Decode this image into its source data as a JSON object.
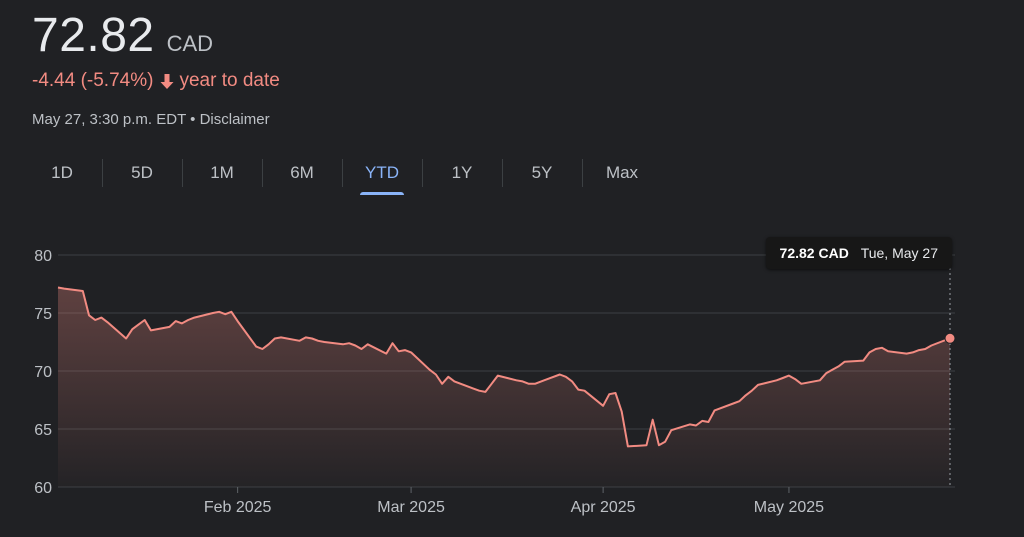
{
  "quote": {
    "price": "72.82",
    "currency": "CAD",
    "change": "-4.44 (-5.74%)",
    "change_period": "year to date",
    "timestamp": "May 27, 3:30 p.m. EDT",
    "separator": "•",
    "disclaimer": "Disclaimer",
    "negative_color": "#f28b82"
  },
  "tabs": [
    {
      "label": "1D",
      "active": false
    },
    {
      "label": "5D",
      "active": false
    },
    {
      "label": "1M",
      "active": false
    },
    {
      "label": "6M",
      "active": false
    },
    {
      "label": "YTD",
      "active": true
    },
    {
      "label": "1Y",
      "active": false
    },
    {
      "label": "5Y",
      "active": false
    },
    {
      "label": "Max",
      "active": false
    }
  ],
  "tooltip": {
    "price": "72.82 CAD",
    "date": "Tue, May 27"
  },
  "chart_data": {
    "type": "area",
    "ylim": [
      60,
      80
    ],
    "yticks": [
      80,
      75,
      70,
      65,
      60
    ],
    "x_tick_labels": [
      "Feb 2025",
      "Mar 2025",
      "Apr 2025",
      "May 2025"
    ],
    "x_tick_days": [
      31,
      59,
      90,
      120
    ],
    "xlim_days": [
      2,
      146
    ],
    "line_color": "#f28b82",
    "grid": true,
    "series": [
      {
        "x_days": [
          2,
          3,
          6,
          7,
          8,
          9,
          10,
          13,
          14,
          15,
          16,
          17,
          20,
          21,
          22,
          23,
          24,
          27,
          28,
          29,
          30,
          31,
          34,
          35,
          36,
          37,
          38,
          41,
          42,
          43,
          44,
          45,
          48,
          49,
          50,
          51,
          52,
          55,
          56,
          57,
          58,
          59,
          62,
          63,
          64,
          65,
          66,
          69,
          70,
          71,
          72,
          73,
          76,
          77,
          78,
          79,
          80,
          83,
          84,
          85,
          86,
          87,
          90,
          91,
          92,
          93,
          94,
          97,
          98,
          99,
          100,
          101,
          104,
          105,
          106,
          107,
          108,
          111,
          112,
          113,
          114,
          115,
          118,
          119,
          120,
          121,
          122,
          125,
          126,
          127,
          128,
          129,
          132,
          133,
          134,
          135,
          136,
          139,
          140,
          141,
          142,
          143,
          146
        ],
        "values": [
          77.2,
          77.1,
          76.9,
          74.8,
          74.4,
          74.6,
          74.2,
          72.8,
          73.6,
          74.0,
          74.4,
          73.5,
          73.8,
          74.3,
          74.1,
          74.4,
          74.6,
          75.0,
          75.1,
          74.9,
          75.1,
          74.3,
          72.1,
          71.9,
          72.3,
          72.8,
          72.9,
          72.6,
          72.9,
          72.8,
          72.6,
          72.5,
          72.3,
          72.4,
          72.2,
          71.9,
          72.3,
          71.5,
          72.4,
          71.7,
          71.8,
          71.6,
          70.1,
          69.7,
          68.9,
          69.5,
          69.1,
          68.5,
          68.3,
          68.2,
          68.9,
          69.6,
          69.2,
          69.1,
          68.9,
          68.9,
          69.1,
          69.7,
          69.5,
          69.1,
          68.4,
          68.3,
          67.0,
          68.0,
          68.1,
          66.5,
          63.5,
          63.6,
          65.8,
          63.6,
          63.9,
          64.9,
          65.4,
          65.3,
          65.7,
          65.6,
          66.6,
          67.2,
          67.4,
          67.9,
          68.3,
          68.8,
          69.2,
          69.4,
          69.6,
          69.3,
          68.9,
          69.2,
          69.8,
          70.1,
          70.4,
          70.8,
          70.9,
          71.6,
          71.9,
          72.0,
          71.7,
          71.5,
          71.6,
          71.8,
          71.9,
          72.2,
          72.82
        ]
      }
    ]
  }
}
